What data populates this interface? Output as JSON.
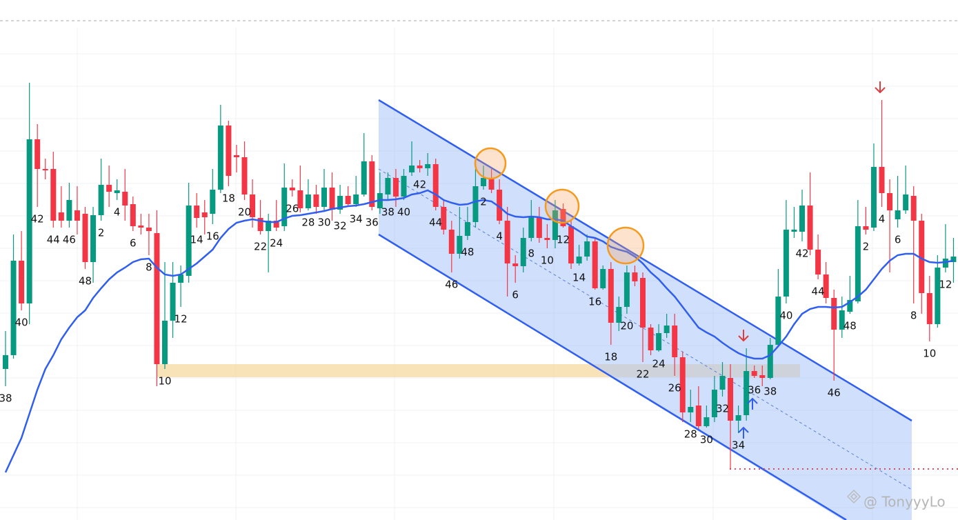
{
  "chart_data": {
    "type": "candlestick",
    "up_color": "#089981",
    "down_color": "#f23645",
    "ylim": [
      0,
      754
    ],
    "categories": [
      "38",
      null,
      "40",
      null,
      "42",
      null,
      "44",
      null,
      "46",
      null,
      "48",
      null,
      "2",
      null,
      "4",
      null,
      "6",
      null,
      "8",
      null,
      "10",
      null,
      "12",
      null,
      "14",
      null,
      "16",
      null,
      "18",
      null,
      "20",
      null,
      "22",
      null,
      "24",
      null,
      "26",
      null,
      "28",
      null,
      "30",
      null,
      "32",
      null,
      "34",
      null,
      "36",
      null,
      "38",
      null,
      "40",
      null,
      "42",
      null,
      "44",
      null,
      "46",
      null,
      "48",
      null,
      "2",
      null,
      "4",
      null,
      "6",
      null,
      "8",
      null,
      "10",
      null,
      "12",
      null,
      "14",
      null,
      "16",
      null,
      "18",
      null,
      "20",
      null,
      "22",
      null,
      "24",
      null,
      "26",
      null,
      "28",
      null,
      "30",
      null,
      "32",
      null,
      "34",
      null,
      "36",
      null,
      "38",
      null,
      "40",
      null,
      "42",
      null,
      "44",
      null,
      "46",
      null,
      "48",
      null,
      "2",
      null,
      "4",
      null,
      "6",
      null,
      "8",
      null,
      "10",
      null,
      "12",
      null
    ],
    "open": [
      219,
      239,
      376,
      314,
      552,
      509,
      509,
      446,
      434,
      449,
      444,
      374,
      442,
      486,
      474,
      476,
      458,
      427,
      424,
      416,
      226,
      289,
      344,
      354,
      456,
      446,
      444,
      479,
      572,
      529,
      526,
      472,
      438,
      419,
      434,
      426,
      482,
      478,
      452,
      472,
      454,
      482,
      450,
      470,
      458,
      472,
      520,
      452,
      472,
      496,
      469,
      504,
      514,
      510,
      516,
      454,
      421,
      386,
      412,
      432,
      484,
      496,
      479,
      434,
      372,
      368,
      409,
      439,
      409,
      406,
      451,
      426,
      372,
      382,
      404,
      336,
      364,
      286,
      309,
      359,
      351,
      279,
      246,
      271,
      282,
      236,
      156,
      166,
      136,
      149,
      189,
      206,
      144,
      152,
      216,
      210,
      206,
      254,
      324,
      418,
      418,
      456,
      392,
      356,
      322,
      276,
      302,
      317,
      426,
      424,
      512,
      474,
      436,
      449,
      470,
      434,
      329,
      284,
      366,
      374
    ],
    "high": [
      274,
      414,
      419,
      634,
      574,
      524,
      534,
      484,
      489,
      484,
      454,
      454,
      524,
      514,
      494,
      509,
      469,
      444,
      444,
      449,
      374,
      374,
      369,
      489,
      474,
      464,
      509,
      602,
      579,
      544,
      549,
      494,
      464,
      444,
      464,
      517,
      494,
      514,
      494,
      486,
      509,
      504,
      486,
      484,
      499,
      561,
      529,
      504,
      504,
      509,
      509,
      549,
      522,
      532,
      524,
      464,
      434,
      454,
      454,
      509,
      514,
      509,
      494,
      454,
      384,
      424,
      464,
      454,
      429,
      464,
      459,
      436,
      399,
      414,
      409,
      369,
      374,
      324,
      369,
      369,
      359,
      284,
      284,
      299,
      299,
      244,
      189,
      194,
      166,
      209,
      229,
      226,
      166,
      249,
      224,
      224,
      264,
      364,
      464,
      454,
      479,
      504,
      414,
      374,
      334,
      324,
      354,
      464,
      454,
      546,
      609,
      494,
      499,
      514,
      484,
      444,
      354,
      384,
      429,
      409
    ],
    "low": [
      194,
      234,
      304,
      284,
      454,
      494,
      424,
      424,
      424,
      414,
      364,
      344,
      434,
      454,
      464,
      434,
      419,
      414,
      384,
      194,
      219,
      264,
      309,
      344,
      424,
      414,
      429,
      474,
      484,
      504,
      464,
      424,
      414,
      359,
      419,
      419,
      469,
      446,
      449,
      444,
      449,
      434,
      444,
      454,
      454,
      469,
      449,
      444,
      464,
      454,
      464,
      499,
      504,
      499,
      449,
      414,
      359,
      379,
      406,
      424,
      479,
      474,
      429,
      324,
      344,
      359,
      404,
      402,
      394,
      394,
      424,
      364,
      369,
      376,
      334,
      334,
      254,
      274,
      299,
      339,
      229,
      239,
      244,
      264,
      209,
      142,
      142,
      132,
      134,
      142,
      179,
      74,
      126,
      144,
      206,
      194,
      204,
      252,
      314,
      409,
      404,
      384,
      349,
      314,
      202,
      264,
      299,
      314,
      414,
      419,
      454,
      359,
      424,
      444,
      314,
      299,
      259,
      279,
      359,
      344
    ],
    "close": [
      239,
      376,
      314,
      552,
      509,
      507,
      434,
      434,
      464,
      434,
      374,
      442,
      486,
      476,
      478,
      456,
      426,
      424,
      419,
      226,
      289,
      344,
      356,
      456,
      438,
      439,
      479,
      572,
      499,
      526,
      472,
      439,
      419,
      434,
      424,
      482,
      478,
      452,
      472,
      454,
      482,
      450,
      470,
      458,
      472,
      520,
      454,
      474,
      496,
      469,
      499,
      514,
      510,
      516,
      454,
      421,
      386,
      412,
      432,
      484,
      496,
      479,
      434,
      372,
      368,
      409,
      439,
      409,
      406,
      449,
      426,
      372,
      382,
      404,
      336,
      364,
      286,
      309,
      359,
      346,
      279,
      246,
      271,
      282,
      236,
      156,
      164,
      136,
      149,
      189,
      209,
      144,
      152,
      216,
      209,
      206,
      254,
      324,
      421,
      421,
      456,
      392,
      356,
      322,
      276,
      304,
      319,
      426,
      421,
      512,
      474,
      449,
      449,
      472,
      434,
      329,
      284,
      366,
      379,
      382
    ],
    "ma": {
      "color": "#2f5ef0",
      "values": [
        69,
        94,
        119,
        154,
        189,
        219,
        239,
        262,
        279,
        294,
        304,
        322,
        336,
        349,
        359,
        366,
        374,
        378,
        379,
        366,
        356,
        354,
        356,
        364,
        372,
        382,
        392,
        409,
        422,
        431,
        434,
        436,
        434,
        432,
        432,
        437,
        441,
        442,
        444,
        446,
        448,
        451,
        453,
        455,
        456,
        458,
        461,
        464,
        464,
        465,
        467,
        472,
        474,
        478,
        472,
        464,
        460,
        457,
        458,
        462,
        464,
        462,
        454,
        444,
        440,
        439,
        440,
        439,
        436,
        436,
        434,
        426,
        419,
        411,
        409,
        404,
        396,
        392,
        389,
        382,
        372,
        359,
        349,
        336,
        324,
        309,
        294,
        279,
        272,
        266,
        257,
        249,
        242,
        237,
        234,
        234,
        239,
        252,
        266,
        284,
        299,
        306,
        309,
        309,
        308,
        309,
        316,
        324,
        334,
        349,
        364,
        376,
        384,
        386,
        386,
        379,
        374,
        373,
        374,
        376
      ]
    }
  },
  "watermark": "@ TonyyyLo"
}
